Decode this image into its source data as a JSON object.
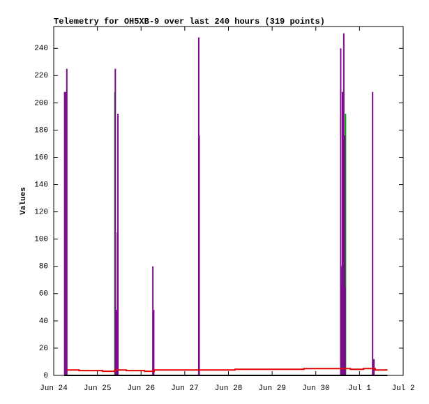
{
  "chart_data": {
    "type": "impulse",
    "title": "Telemetry for OH5XB-9 over last 240 hours (319 points)",
    "y_label": "Values",
    "xlim": [
      24,
      32
    ],
    "xticks": [
      {
        "value": 24,
        "label": "Jun 24"
      },
      {
        "value": 25,
        "label": "Jun 25"
      },
      {
        "value": 26,
        "label": "Jun 26"
      },
      {
        "value": 27,
        "label": "Jun 27"
      },
      {
        "value": 28,
        "label": "Jun 28"
      },
      {
        "value": 29,
        "label": "Jun 29"
      },
      {
        "value": 30,
        "label": "Jun 30"
      },
      {
        "value": 31,
        "label": "Jul 1"
      },
      {
        "value": 32,
        "label": "Jul 2"
      }
    ],
    "ylim": [
      0,
      256
    ],
    "yticks": [
      0,
      20,
      40,
      60,
      80,
      100,
      120,
      140,
      160,
      180,
      200,
      220,
      240
    ],
    "grid": false,
    "series": [
      {
        "style": "impulses",
        "color": "#00a000",
        "x": [
          25.4,
          30.65,
          30.68
        ],
        "values": [
          208,
          176,
          192
        ]
      },
      {
        "style": "impulses",
        "color": "#7a0a8a",
        "x": [
          24.25,
          24.27,
          24.3,
          25.41,
          25.43,
          25.46,
          25.47,
          26.27,
          26.29,
          27.32,
          27.33,
          30.57,
          30.58,
          30.6,
          30.61,
          30.64,
          30.66,
          30.67,
          31.3,
          31.33
        ],
        "values": [
          208,
          208,
          225,
          225,
          48,
          105,
          192,
          80,
          48,
          248,
          176,
          240,
          15,
          80,
          208,
          251,
          176,
          65,
          208,
          12
        ]
      },
      {
        "style": "lines",
        "color": "#000000",
        "x": [
          24.24,
          31.64
        ],
        "values": [
          0,
          0
        ]
      },
      {
        "style": "lines",
        "color": "#e00000",
        "x": [
          24.3,
          24.58,
          24.58,
          25.12,
          25.12,
          25.4,
          25.4,
          25.66,
          25.66,
          26.08,
          26.08,
          26.3,
          26.3,
          28.15,
          28.15,
          29.73,
          29.73,
          30.79,
          30.79,
          31.09,
          31.09,
          31.36,
          31.36,
          31.64
        ],
        "values": [
          4,
          4,
          3.5,
          3.5,
          3,
          3,
          4,
          4,
          3.5,
          3.5,
          3,
          3,
          4,
          4,
          4.5,
          4.5,
          5,
          5,
          4.5,
          4.5,
          5,
          5,
          4,
          4
        ]
      }
    ]
  }
}
